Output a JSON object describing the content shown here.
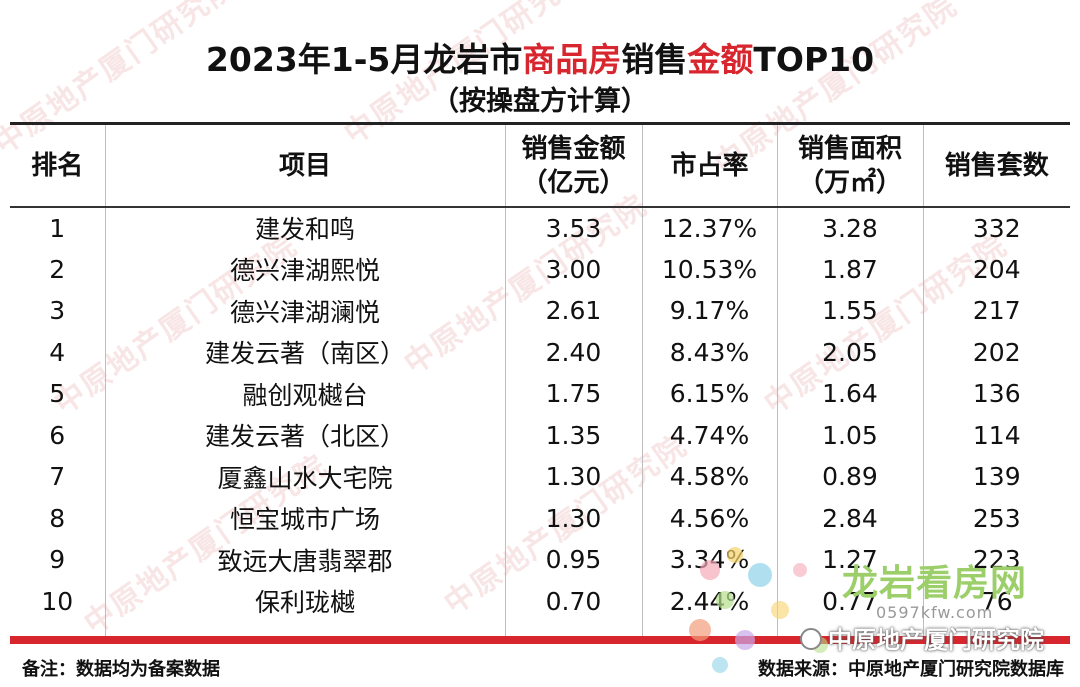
{
  "title": {
    "part1": "2023年1-5月龙岩市",
    "highlight1": "商品房",
    "part2": "销售",
    "highlight2": "金额",
    "part3": "TOP10",
    "subtitle": "（按操盘方计算）"
  },
  "table": {
    "headers": {
      "rank": "排名",
      "project": "项目",
      "amount_line1": "销售金额",
      "amount_line2": "（亿元）",
      "share": "市占率",
      "area_line1": "销售面积",
      "area_line2": "（万㎡）",
      "units": "销售套数"
    },
    "rows": [
      {
        "rank": "1",
        "project": "建发和鸣",
        "amount": "3.53",
        "share": "12.37%",
        "area": "3.28",
        "units": "332"
      },
      {
        "rank": "2",
        "project": "德兴津湖熙悦",
        "amount": "3.00",
        "share": "10.53%",
        "area": "1.87",
        "units": "204"
      },
      {
        "rank": "3",
        "project": "德兴津湖澜悦",
        "amount": "2.61",
        "share": "9.17%",
        "area": "1.55",
        "units": "217"
      },
      {
        "rank": "4",
        "project": "建发云著（南区）",
        "amount": "2.40",
        "share": "8.43%",
        "area": "2.05",
        "units": "202"
      },
      {
        "rank": "5",
        "project": "融创观樾台",
        "amount": "1.75",
        "share": "6.15%",
        "area": "1.64",
        "units": "136"
      },
      {
        "rank": "6",
        "project": "建发云著（北区）",
        "amount": "1.35",
        "share": "4.74%",
        "area": "1.05",
        "units": "114"
      },
      {
        "rank": "7",
        "project": "厦鑫山水大宅院",
        "amount": "1.30",
        "share": "4.58%",
        "area": "0.89",
        "units": "139"
      },
      {
        "rank": "8",
        "project": "恒宝城市广场",
        "amount": "1.30",
        "share": "4.56%",
        "area": "2.84",
        "units": "253"
      },
      {
        "rank": "9",
        "project": "致远大唐翡翠郡",
        "amount": "0.95",
        "share": "3.34%",
        "area": "1.27",
        "units": "223"
      },
      {
        "rank": "10",
        "project": "保利珑樾",
        "amount": "0.70",
        "share": "2.44%",
        "area": "0.77",
        "units": "76"
      }
    ]
  },
  "footer": {
    "note": "备注：数据均为备案数据",
    "source": "数据来源：中原地产厦门研究院数据库"
  },
  "watermark": {
    "text": "中原地产厦门研究院"
  },
  "brand": {
    "logo": "龙岩看房网",
    "url": "0597kfw.com"
  },
  "wechat": {
    "account": "中原地产厦门研究院"
  },
  "colors": {
    "accent": "#d8262e",
    "brand_green": "#9ccf6a"
  }
}
